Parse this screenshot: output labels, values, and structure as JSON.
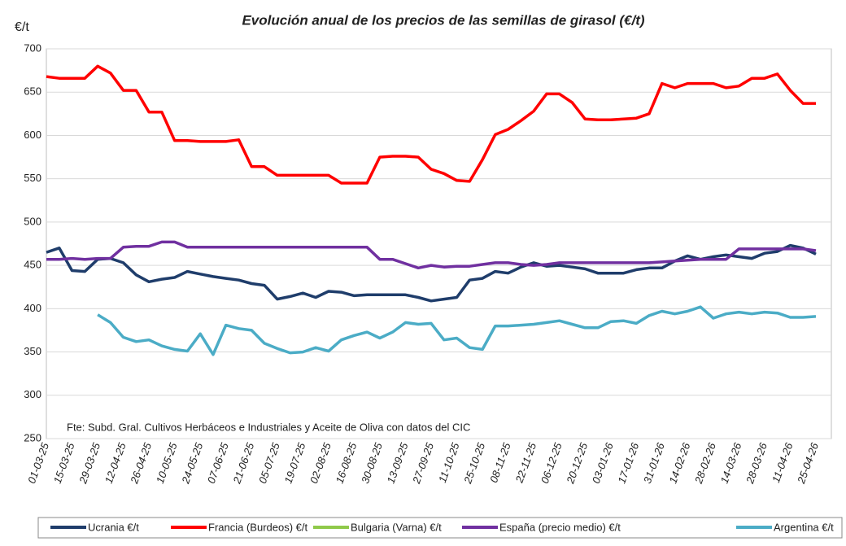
{
  "chart_data": {
    "type": "line",
    "title": "Evolución anual de los precios de las semillas de girasol (€/t)",
    "y_label": "€/t",
    "annotation": "Fte: Subd. Gral. Cultivos Herbáceos e Industriales y Aceite de Oliva con datos del CIC",
    "categories": [
      "01-03-25",
      null,
      "15-03-25",
      null,
      "29-03-25",
      null,
      "12-04-25",
      null,
      "26-04-25",
      null,
      "10-05-25",
      null,
      "24-05-25",
      null,
      "07-06-25",
      null,
      "21-06-25",
      null,
      "05-07-25",
      null,
      "19-07-25",
      null,
      "02-08-25",
      null,
      "16-08-25",
      null,
      "30-08-25",
      null,
      "13-09-25",
      null,
      "27-09-25",
      null,
      "11-10-25",
      null,
      "25-10-25",
      null,
      "08-11-25",
      null,
      "22-11-25",
      null,
      "06-12-25",
      null,
      "20-12-25",
      null,
      "03-01-26",
      null,
      "17-01-26",
      null,
      "31-01-26",
      null,
      "14-02-26",
      null,
      "28-02-26",
      null,
      "14-03-26",
      null,
      "28-03-26",
      null,
      "11-04-26",
      null,
      "25-04-26"
    ],
    "ylim": [
      250,
      700
    ],
    "yticks": [
      250,
      300,
      350,
      400,
      450,
      500,
      550,
      600,
      650,
      700
    ],
    "grid": true,
    "legend": "bottom",
    "series": [
      {
        "name": "Ucrania €/t",
        "color": "#1f3d6b",
        "values": [
          465,
          470,
          444,
          443,
          457,
          458,
          453,
          439,
          431,
          434,
          436,
          443,
          440,
          437,
          435,
          433,
          429,
          427,
          411,
          414,
          418,
          413,
          420,
          419,
          415,
          416,
          416,
          416,
          416,
          413,
          409,
          411,
          413,
          433,
          435,
          443,
          441,
          448,
          453,
          449,
          450,
          448,
          446,
          441,
          441,
          441,
          445,
          447,
          447,
          455,
          461,
          457,
          460,
          462,
          460,
          458,
          464,
          466,
          473,
          470,
          463
        ]
      },
      {
        "name": "Francia (Burdeos) €/t",
        "color": "#ff0000",
        "values": [
          668,
          666,
          666,
          666,
          680,
          672,
          652,
          652,
          627,
          627,
          594,
          594,
          593,
          593,
          593,
          595,
          564,
          564,
          554,
          554,
          554,
          554,
          554,
          545,
          545,
          545,
          575,
          576,
          576,
          575,
          561,
          556,
          548,
          547,
          572,
          601,
          607,
          617,
          628,
          648,
          648,
          638,
          619,
          618,
          618,
          619,
          620,
          625,
          660,
          655,
          660,
          660,
          660,
          655,
          657,
          666,
          666,
          671,
          652,
          637,
          637
        ]
      },
      {
        "name": "Bulgaria (Varna) €/t",
        "color": "#8fc94a",
        "values": [
          null,
          null,
          null,
          null,
          null,
          null,
          null,
          null,
          null,
          null,
          null,
          null,
          null,
          null,
          null,
          null,
          null,
          null,
          null,
          null,
          null,
          null,
          null,
          null,
          null,
          null,
          null,
          null,
          null,
          null,
          null,
          null,
          null,
          null,
          null,
          null,
          null,
          null,
          null,
          null,
          null,
          null,
          null,
          null,
          null,
          null,
          null,
          null,
          null,
          null,
          null,
          null,
          null,
          null,
          null,
          null,
          null,
          null,
          null,
          null,
          null
        ]
      },
      {
        "name": "España (precio medio) €/t",
        "color": "#7030a0",
        "values": [
          457,
          457,
          458,
          457,
          458,
          458,
          471,
          472,
          472,
          477,
          477,
          471,
          471,
          471,
          471,
          471,
          471,
          471,
          471,
          471,
          471,
          471,
          471,
          471,
          471,
          471,
          457,
          457,
          452,
          447,
          450,
          448,
          449,
          449,
          451,
          453,
          453,
          451,
          450,
          451,
          453,
          453,
          453,
          453,
          453,
          453,
          453,
          453,
          454,
          455,
          456,
          457,
          457,
          457,
          469,
          469,
          469,
          469,
          469,
          469,
          467
        ]
      },
      {
        "name": "Argentina €/t",
        "color": "#4bacc6",
        "values": [
          null,
          null,
          null,
          null,
          393,
          384,
          367,
          362,
          364,
          357,
          353,
          351,
          371,
          347,
          381,
          377,
          375,
          360,
          354,
          349,
          350,
          355,
          351,
          364,
          369,
          373,
          366,
          373,
          384,
          382,
          383,
          364,
          366,
          355,
          353,
          380,
          380,
          381,
          382,
          384,
          386,
          382,
          378,
          378,
          385,
          386,
          383,
          392,
          397,
          394,
          397,
          402,
          389,
          394,
          396,
          394,
          396,
          395,
          390,
          390,
          391
        ]
      }
    ]
  }
}
